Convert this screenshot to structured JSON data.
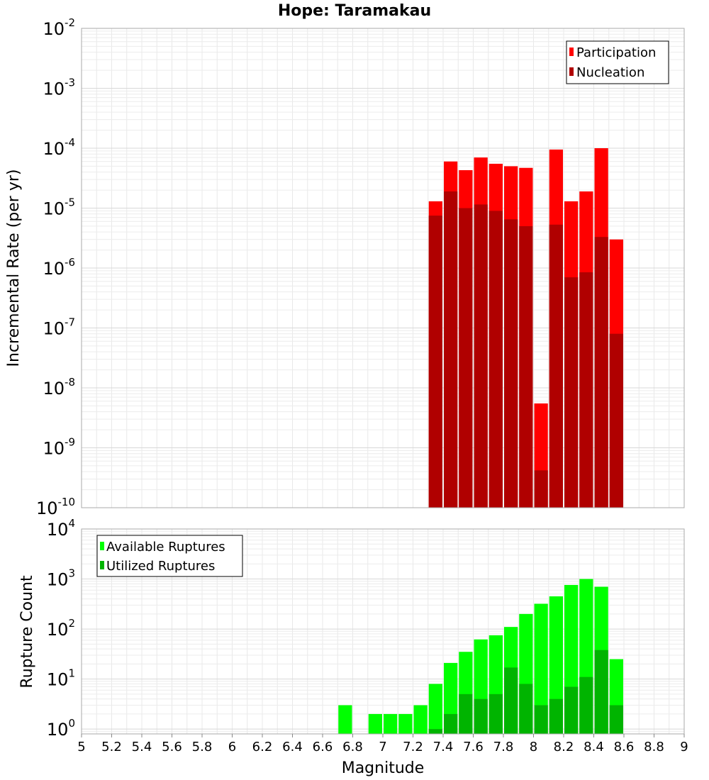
{
  "chart_data": [
    {
      "type": "bar",
      "title": "Hope: Taramakau",
      "xlabel": "Magnitude",
      "ylabel": "Incremental Rate (per yr)",
      "yscale": "log",
      "ylim": [
        1e-10,
        0.01
      ],
      "xlim": [
        5,
        9
      ],
      "grid": true,
      "legend_position": "top-right",
      "colors": {
        "Participation": "#ff0000",
        "Nucleation": "#b00000"
      },
      "x": [
        7.35,
        7.45,
        7.55,
        7.65,
        7.75,
        7.85,
        7.95,
        8.05,
        8.15,
        8.25,
        8.35,
        8.45,
        8.55
      ],
      "series": [
        {
          "name": "Participation",
          "values": [
            1.3e-05,
            6e-05,
            4.3e-05,
            7e-05,
            5.5e-05,
            5e-05,
            4.7e-05,
            5.5e-09,
            9.5e-05,
            1.3e-05,
            1.9e-05,
            0.0001,
            3e-06
          ]
        },
        {
          "name": "Nucleation",
          "values": [
            7.5e-06,
            1.9e-05,
            1e-05,
            1.15e-05,
            9e-06,
            6.5e-06,
            5e-06,
            4.2e-10,
            5.3e-06,
            7e-07,
            8.5e-07,
            3.3e-06,
            8e-08
          ]
        }
      ]
    },
    {
      "type": "bar",
      "title": "",
      "xlabel": "Magnitude",
      "ylabel": "Rupture Count",
      "yscale": "log",
      "ylim": [
        0.8,
        10000
      ],
      "xlim": [
        5,
        9
      ],
      "grid": true,
      "legend_position": "top-left",
      "colors": {
        "Available Ruptures": "#00ff00",
        "Utilized Ruptures": "#00b400"
      },
      "x": [
        6.75,
        6.95,
        7.05,
        7.15,
        7.25,
        7.35,
        7.45,
        7.55,
        7.65,
        7.75,
        7.85,
        7.95,
        8.05,
        8.15,
        8.25,
        8.35,
        8.45,
        8.55
      ],
      "series": [
        {
          "name": "Available Ruptures",
          "values": [
            3,
            2,
            2,
            2,
            3,
            8,
            21,
            35,
            62,
            75,
            110,
            200,
            320,
            450,
            760,
            1000,
            700,
            25
          ]
        },
        {
          "name": "Utilized Ruptures",
          "values": [
            0,
            0,
            0,
            0,
            0,
            1,
            2,
            5,
            4,
            5,
            17,
            8,
            3,
            4,
            7,
            11,
            38,
            3
          ]
        }
      ]
    }
  ],
  "ticks": {
    "x": [
      "5",
      "5.2",
      "5.4",
      "5.6",
      "5.8",
      "6",
      "6.2",
      "6.4",
      "6.6",
      "6.8",
      "7",
      "7.2",
      "7.4",
      "7.6",
      "7.8",
      "8",
      "8.2",
      "8.4",
      "8.6",
      "8.8",
      "9"
    ],
    "top_y_exponents": [
      "-10",
      "-9",
      "-8",
      "-7",
      "-6",
      "-5",
      "-4",
      "-3",
      "-2"
    ],
    "bottom_y_exponents": [
      "0",
      "1",
      "2",
      "3",
      "4"
    ],
    "y_base": "10"
  }
}
